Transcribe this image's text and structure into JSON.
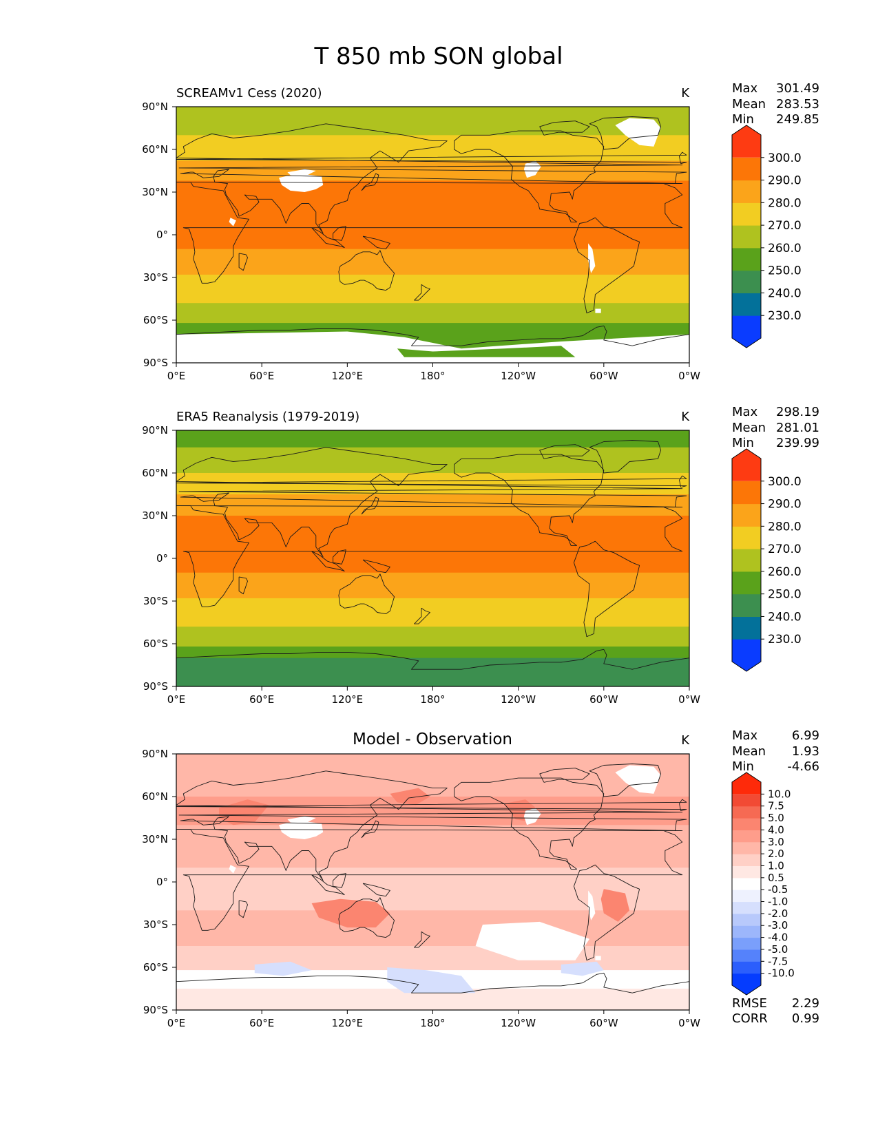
{
  "figure": {
    "title": "T 850 mb SON global"
  },
  "chart_data": [
    {
      "type": "heatmap",
      "title": "SCREAMv1 Cess (2020)",
      "units": "K",
      "stats": [
        {
          "label": "Max",
          "value": "301.49"
        },
        {
          "label": "Mean",
          "value": "283.53"
        },
        {
          "label": "Min",
          "value": "249.85"
        }
      ],
      "colorbar": {
        "levels": [
          "230.0",
          "240.0",
          "250.0",
          "260.0",
          "270.0",
          "280.0",
          "290.0",
          "300.0"
        ],
        "colors": [
          "#0a3cff",
          "#03719a",
          "#3c8f4f",
          "#5aa21b",
          "#afc21f",
          "#f2cd22",
          "#fba41a",
          "#fc7607",
          "#fe3b12"
        ]
      },
      "xticks": [
        "0°E",
        "60°E",
        "120°E",
        "180°",
        "120°W",
        "60°W",
        "0°W"
      ],
      "yticks": [
        "90°N",
        "60°N",
        "30°N",
        "0°",
        "30°S",
        "60°S",
        "90°S"
      ],
      "zonal_bands": [
        {
          "lat_top": 90,
          "lat_bottom": 70,
          "value": 262
        },
        {
          "lat_top": 70,
          "lat_bottom": 52,
          "value": 272
        },
        {
          "lat_top": 52,
          "lat_bottom": 38,
          "value": 282
        },
        {
          "lat_top": 38,
          "lat_bottom": -10,
          "value": 292
        },
        {
          "lat_top": -10,
          "lat_bottom": -28,
          "value": 284
        },
        {
          "lat_top": -28,
          "lat_bottom": -48,
          "value": 274
        },
        {
          "lat_top": -48,
          "lat_bottom": -62,
          "value": 264
        },
        {
          "lat_top": -62,
          "lat_bottom": -90,
          "value": 256
        }
      ]
    },
    {
      "type": "heatmap",
      "title": "ERA5 Reanalysis (1979-2019)",
      "units": "K",
      "stats": [
        {
          "label": "Max",
          "value": "298.19"
        },
        {
          "label": "Mean",
          "value": "281.01"
        },
        {
          "label": "Min",
          "value": "239.99"
        }
      ],
      "colorbar": {
        "levels": [
          "230.0",
          "240.0",
          "250.0",
          "260.0",
          "270.0",
          "280.0",
          "290.0",
          "300.0"
        ],
        "colors": [
          "#0a3cff",
          "#03719a",
          "#3c8f4f",
          "#5aa21b",
          "#afc21f",
          "#f2cd22",
          "#fba41a",
          "#fc7607",
          "#fe3b12"
        ]
      },
      "xticks": [
        "0°E",
        "60°E",
        "120°E",
        "180°",
        "120°W",
        "60°W",
        "0°W"
      ],
      "yticks": [
        "90°N",
        "60°N",
        "30°N",
        "0°",
        "30°S",
        "60°S",
        "90°S"
      ],
      "zonal_bands": [
        {
          "lat_top": 90,
          "lat_bottom": 78,
          "value": 255
        },
        {
          "lat_top": 78,
          "lat_bottom": 60,
          "value": 265
        },
        {
          "lat_top": 60,
          "lat_bottom": 45,
          "value": 275
        },
        {
          "lat_top": 45,
          "lat_bottom": 30,
          "value": 284
        },
        {
          "lat_top": 30,
          "lat_bottom": -10,
          "value": 292
        },
        {
          "lat_top": -10,
          "lat_bottom": -28,
          "value": 284
        },
        {
          "lat_top": -28,
          "lat_bottom": -48,
          "value": 274
        },
        {
          "lat_top": -48,
          "lat_bottom": -62,
          "value": 264
        },
        {
          "lat_top": -62,
          "lat_bottom": -70,
          "value": 255
        },
        {
          "lat_top": -70,
          "lat_bottom": -90,
          "value": 245
        }
      ]
    },
    {
      "type": "heatmap",
      "title": "Model - Observation",
      "units": "K",
      "stats": [
        {
          "label": "Max",
          "value": "6.99"
        },
        {
          "label": "Mean",
          "value": "1.93"
        },
        {
          "label": "Min",
          "value": "-4.66"
        }
      ],
      "colorbar": {
        "levels": [
          "-10.0",
          "-7.5",
          "-5.0",
          "-4.0",
          "-3.0",
          "-2.0",
          "-1.0",
          "-0.5",
          "0.5",
          "1.0",
          "2.0",
          "3.0",
          "4.0",
          "5.0",
          "7.5",
          "10.0"
        ],
        "colors": [
          "#053cfe",
          "#2b5efc",
          "#5582fb",
          "#7a9ffb",
          "#9cb6fb",
          "#b8c9fb",
          "#d6dffd",
          "#eef1fe",
          "#ffffff",
          "#ffe8e3",
          "#ffd0c6",
          "#ffb7a8",
          "#fe9d8b",
          "#fb8570",
          "#f66a53",
          "#f24a34",
          "#fe2a0a"
        ]
      },
      "xticks": [
        "0°E",
        "60°E",
        "120°E",
        "180°",
        "120°W",
        "60°W",
        "0°W"
      ],
      "yticks": [
        "90°N",
        "60°N",
        "30°N",
        "0°",
        "30°S",
        "60°S",
        "90°S"
      ],
      "zonal_bands": [
        {
          "lat_top": 90,
          "lat_bottom": 60,
          "value": 2.5
        },
        {
          "lat_top": 60,
          "lat_bottom": 40,
          "value": 3.5
        },
        {
          "lat_top": 40,
          "lat_bottom": 10,
          "value": 2.5
        },
        {
          "lat_top": 10,
          "lat_bottom": -20,
          "value": 1.5
        },
        {
          "lat_top": -20,
          "lat_bottom": -45,
          "value": 2.5
        },
        {
          "lat_top": -45,
          "lat_bottom": -62,
          "value": 1.5
        },
        {
          "lat_top": -62,
          "lat_bottom": -75,
          "value": 0
        },
        {
          "lat_top": -75,
          "lat_bottom": -90,
          "value": 0.75
        }
      ],
      "extra": [
        {
          "label": "RMSE",
          "value": "2.29"
        },
        {
          "label": "CORR",
          "value": "0.99"
        }
      ]
    }
  ]
}
